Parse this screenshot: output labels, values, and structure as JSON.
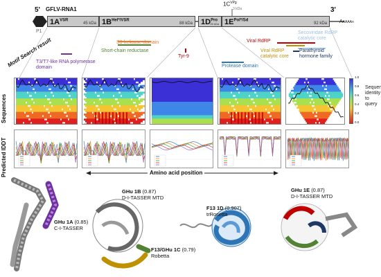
{
  "genome": {
    "five_prime": "5'",
    "three_prime": "3'",
    "name": "GFLV-RNA1",
    "p1": "P1",
    "poly_a": "A",
    "poly_a_sub": "AAAAn",
    "vpg_main": "1C",
    "vpg_sup": "VPg",
    "vpg_size": "3 kDa",
    "segments": [
      {
        "name": "1A",
        "sup": "VSR",
        "size": "45 kDa"
      },
      {
        "name": "1B",
        "sup": "Hel*/VSR",
        "size": "88 kDa"
      },
      {
        "name": "1D",
        "sup": "Pro",
        "size": "25 kDa"
      },
      {
        "name": "1E",
        "sup": "Pol*/Sd",
        "size": "92 kDa"
      }
    ]
  },
  "motif_title": "Motif Search result",
  "motifs": [
    {
      "label": "T3/T7-like RNA polymerase domain",
      "color": "#7030a0"
    },
    {
      "label": "S3 helicase domain",
      "color": "#ed7d31"
    },
    {
      "label": "Short-chain reductase",
      "color": "#548235"
    },
    {
      "label": "Tyr-9",
      "color": "#c00000"
    },
    {
      "label": "Protease domain",
      "color": "#2e75b6"
    },
    {
      "label": "Viral RdRP",
      "color": "#c00000"
    },
    {
      "label": "Viral RdRP catalytic core",
      "color": "#bf9000"
    },
    {
      "label": "Secoviridae RdRP catalytic core",
      "color": "#9dc3e6"
    },
    {
      "label": "Parathyroid hormone family",
      "color": "#203864"
    }
  ],
  "sequences_label": "Sequences",
  "iddt_label": "Predicted lDDT",
  "axis_label": "Amino acid position",
  "colorbar_label": "Sequence identity to query",
  "colorbar_ticks": [
    "1.0",
    "0.8",
    "0.6",
    "0.4",
    "0.2",
    "0.0"
  ],
  "structures": [
    {
      "title": "GHu 1A",
      "score": "(0.85)",
      "method": "C-I-TASSER",
      "color": "#7030a0"
    },
    {
      "title": "GHu 1B",
      "score": "(0.87)",
      "method": "D-I-TASSER MTD",
      "color": "#bf9000"
    },
    {
      "title": "F13/GHu 1C",
      "score": "(0.79)",
      "method": "Robetta",
      "color": "#888888"
    },
    {
      "title": "F13 1D",
      "score": "(0.907)",
      "method": "trRosetta",
      "color": "#2e75b6"
    },
    {
      "title": "GHu 1E",
      "score": "(0.87)",
      "method": "D-I-TASSER MTD",
      "color": "#c00000"
    }
  ]
}
